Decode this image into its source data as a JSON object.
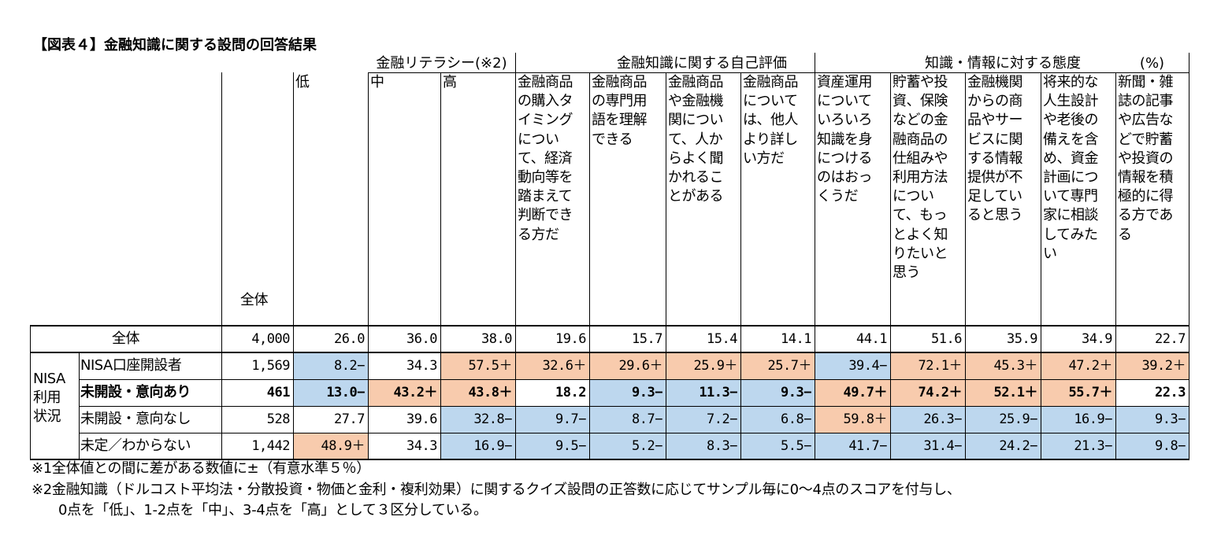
{
  "title": "【図表４】金融知識に関する設問の回答結果",
  "groups": [
    "金融リテラシー(※2)",
    "金融知識に関する自己評価",
    "知識・情報に対する態度",
    "(%)"
  ],
  "total_header": "全体",
  "columns": [
    {
      "lines": [
        "低"
      ]
    },
    {
      "lines": [
        "中"
      ]
    },
    {
      "lines": [
        "高"
      ]
    },
    {
      "lines": [
        "金融商品",
        "の購入タ",
        "イミング",
        "につい",
        "て、経済",
        "動向等を",
        "踏まえて",
        "判断でき",
        "る方だ"
      ]
    },
    {
      "lines": [
        "金融商品",
        "の専門用",
        "語を理解",
        "できる"
      ]
    },
    {
      "lines": [
        "金融商品",
        "や金融機",
        "関につい",
        "て、人か",
        "らよく聞",
        "かれるこ",
        "とがある"
      ]
    },
    {
      "lines": [
        "金融商品",
        "について",
        "は、他人",
        "より詳し",
        "い方だ"
      ]
    },
    {
      "lines": [
        "資産運用",
        "について",
        "いろいろ",
        "知識を身",
        "につける",
        "のはおっ",
        "くうだ"
      ]
    },
    {
      "lines": [
        "貯蓄や投",
        "資、保険",
        "などの金",
        "融商品の",
        "仕組みや",
        "利用方法",
        "につい",
        "て、もっ",
        "とよく知",
        "りたいと",
        "思う"
      ]
    },
    {
      "lines": [
        "金融機関",
        "からの商",
        "品やサー",
        "ビスに関",
        "する情報",
        "提供が不",
        "足してい",
        "ると思う"
      ]
    },
    {
      "lines": [
        "将来的な",
        "人生設計",
        "や老後の",
        "備えを含",
        "め、資金",
        "計画につ",
        "いて専門",
        "家に相談",
        "してみた",
        "い"
      ]
    },
    {
      "lines": [
        "新聞・雑",
        "誌の記事",
        "や広告な",
        "どで貯蓄",
        "や投資の",
        "情報を積",
        "極的に得",
        "る方であ",
        "る"
      ]
    }
  ],
  "side_label_lines": [
    "NISA",
    "利用",
    "状況"
  ],
  "colors": {
    "higher": "#f8cbad",
    "lower": "#bdd7ee",
    "border": "#000000"
  },
  "rows": [
    {
      "label": "全体",
      "bold": false,
      "total": "4,000",
      "cells": [
        [
          "26.0",
          ""
        ],
        [
          "36.0",
          ""
        ],
        [
          "38.0",
          ""
        ],
        [
          "19.6",
          ""
        ],
        [
          "15.7",
          ""
        ],
        [
          "15.4",
          ""
        ],
        [
          "14.1",
          ""
        ],
        [
          "44.1",
          ""
        ],
        [
          "51.6",
          ""
        ],
        [
          "35.9",
          ""
        ],
        [
          "34.9",
          ""
        ],
        [
          "22.7",
          ""
        ]
      ]
    },
    {
      "label": "NISA口座開設者",
      "bold": false,
      "total": "1,569",
      "cells": [
        [
          "8.2−",
          "-"
        ],
        [
          "34.3",
          ""
        ],
        [
          "57.5＋",
          "+"
        ],
        [
          "32.6＋",
          "+"
        ],
        [
          "29.6＋",
          "+"
        ],
        [
          "25.9＋",
          "+"
        ],
        [
          "25.7＋",
          "+"
        ],
        [
          "39.4−",
          "-"
        ],
        [
          "72.1＋",
          "+"
        ],
        [
          "45.3＋",
          "+"
        ],
        [
          "47.2＋",
          "+"
        ],
        [
          "39.2＋",
          "+"
        ]
      ]
    },
    {
      "label": "未開設・意向あり",
      "bold": true,
      "total": "461",
      "cells": [
        [
          "13.0−",
          "-"
        ],
        [
          "43.2＋",
          "+"
        ],
        [
          "43.8＋",
          "+"
        ],
        [
          "18.2",
          ""
        ],
        [
          "9.3−",
          "-"
        ],
        [
          "11.3−",
          "-"
        ],
        [
          "9.3−",
          "-"
        ],
        [
          "49.7＋",
          "+"
        ],
        [
          "74.2＋",
          "+"
        ],
        [
          "52.1＋",
          "+"
        ],
        [
          "55.7＋",
          "+"
        ],
        [
          "22.3",
          ""
        ]
      ]
    },
    {
      "label": "未開設・意向なし",
      "bold": false,
      "total": "528",
      "cells": [
        [
          "27.7",
          ""
        ],
        [
          "39.6",
          ""
        ],
        [
          "32.8−",
          "-"
        ],
        [
          "9.7−",
          "-"
        ],
        [
          "8.7−",
          "-"
        ],
        [
          "7.2−",
          "-"
        ],
        [
          "6.8−",
          "-"
        ],
        [
          "59.8＋",
          "+"
        ],
        [
          "26.3−",
          "-"
        ],
        [
          "25.9−",
          "-"
        ],
        [
          "16.9−",
          "-"
        ],
        [
          "9.3−",
          "-"
        ]
      ]
    },
    {
      "label": "未定／わからない",
      "bold": false,
      "total": "1,442",
      "cells": [
        [
          "48.9＋",
          "+"
        ],
        [
          "34.3",
          ""
        ],
        [
          "16.9−",
          "-"
        ],
        [
          "9.5−",
          "-"
        ],
        [
          "5.2−",
          "-"
        ],
        [
          "8.3−",
          "-"
        ],
        [
          "5.5−",
          "-"
        ],
        [
          "41.7−",
          "-"
        ],
        [
          "31.4−",
          "-"
        ],
        [
          "24.2−",
          "-"
        ],
        [
          "21.3−",
          "-"
        ],
        [
          "9.8−",
          "-"
        ]
      ]
    }
  ],
  "notes": [
    "※1全体値との間に差がある数値に±（有意水準５％）",
    "※2金融知識（ドルコスト平均法・分散投資・物価と金利・複利効果）に関するクイズ設問の正答数に応じてサンプル毎に0〜4点のスコアを付与し、",
    "0点を「低」、1-2点を「中」、3-4点を「高」として３区分している。"
  ],
  "chart_data": {
    "type": "table",
    "title": "【図表４】金融知識に関する設問の回答結果",
    "unit": "(%)",
    "groups": [
      {
        "name": "金融リテラシー(※2)",
        "columns": [
          "低",
          "中",
          "高"
        ]
      },
      {
        "name": "金融知識に関する自己評価",
        "columns": [
          "金融商品の購入タイミングについて、経済動向等を踏まえて判断できる方だ",
          "金融商品の専門用語を理解できる",
          "金融商品や金融機関について、人からよく聞かれることがある",
          "金融商品については、他人より詳しい方だ"
        ]
      },
      {
        "name": "知識・情報に対する態度",
        "columns": [
          "資産運用についていろいろ知識を身につけるのはおっくうだ",
          "貯蓄や投資、保険などの金融商品の仕組みや利用方法について、もっとよく知りたいと思う",
          "金融機関からの商品やサービスに関する情報提供が不足していると思う",
          "将来的な人生設計や老後の備えを含め、資金計画について専門家に相談してみたい",
          "新聞・雑誌の記事や広告などで貯蓄や投資の情報を積極的に得る方である"
        ]
      }
    ],
    "row_groups": [
      {
        "name": "NISA利用状況",
        "rows": [
          "NISA口座開設者",
          "未開設・意向あり",
          "未開設・意向なし",
          "未定／わからない"
        ]
      }
    ],
    "rows": [
      {
        "name": "全体",
        "n": 4000,
        "values": [
          26.0,
          36.0,
          38.0,
          19.6,
          15.7,
          15.4,
          14.1,
          44.1,
          51.6,
          35.9,
          34.9,
          22.7
        ]
      },
      {
        "name": "NISA口座開設者",
        "n": 1569,
        "values": [
          8.2,
          34.3,
          57.5,
          32.6,
          29.6,
          25.9,
          25.7,
          39.4,
          72.1,
          45.3,
          47.2,
          39.2
        ]
      },
      {
        "name": "未開設・意向あり",
        "n": 461,
        "values": [
          13.0,
          43.2,
          43.8,
          18.2,
          9.3,
          11.3,
          9.3,
          49.7,
          74.2,
          52.1,
          55.7,
          22.3
        ]
      },
      {
        "name": "未開設・意向なし",
        "n": 528,
        "values": [
          27.7,
          39.6,
          32.8,
          9.7,
          8.7,
          7.2,
          6.8,
          59.8,
          26.3,
          25.9,
          16.9,
          9.3
        ]
      },
      {
        "name": "未定／わからない",
        "n": 1442,
        "values": [
          48.9,
          34.3,
          16.9,
          9.5,
          5.2,
          8.3,
          5.5,
          41.7,
          31.4,
          24.2,
          21.3,
          9.8
        ]
      }
    ]
  }
}
